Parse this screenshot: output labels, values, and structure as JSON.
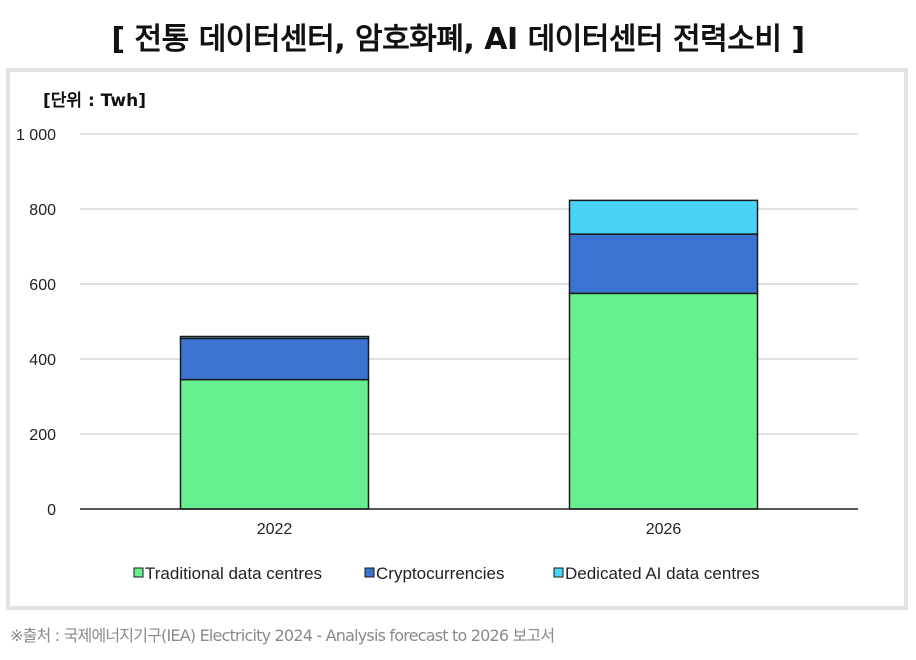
{
  "title": "[ 전통 데이터센터, 암호화폐, AI 데이터센터 전력소비 ]",
  "source": "※출처 : 국제에너지기구(IEA) Electricity 2024 - Analysis forecast to 2026 보고서",
  "colors": {
    "traditional": "#66f08f",
    "crypto": "#3b73d1",
    "ai": "#49d3f7",
    "outline": "#1a1a1a",
    "grid": "#d9d9d9",
    "frame": "#e3e3e3"
  },
  "chart_data": {
    "type": "bar",
    "stacked": true,
    "unit_label": "[단위 : Twh]",
    "categories": [
      "2022",
      "2026"
    ],
    "series": [
      {
        "name": "Traditional data centres",
        "values": [
          345,
          575
        ]
      },
      {
        "name": "Cryptocurrencies",
        "values": [
          110,
          158
        ]
      },
      {
        "name": "Dedicated AI data centres",
        "values": [
          5,
          90
        ]
      }
    ],
    "y_ticks": [
      "0",
      "200",
      "400",
      "600",
      "800",
      "1 000"
    ],
    "ylim": [
      0,
      1000
    ],
    "grid": true,
    "legend_position": "bottom"
  }
}
